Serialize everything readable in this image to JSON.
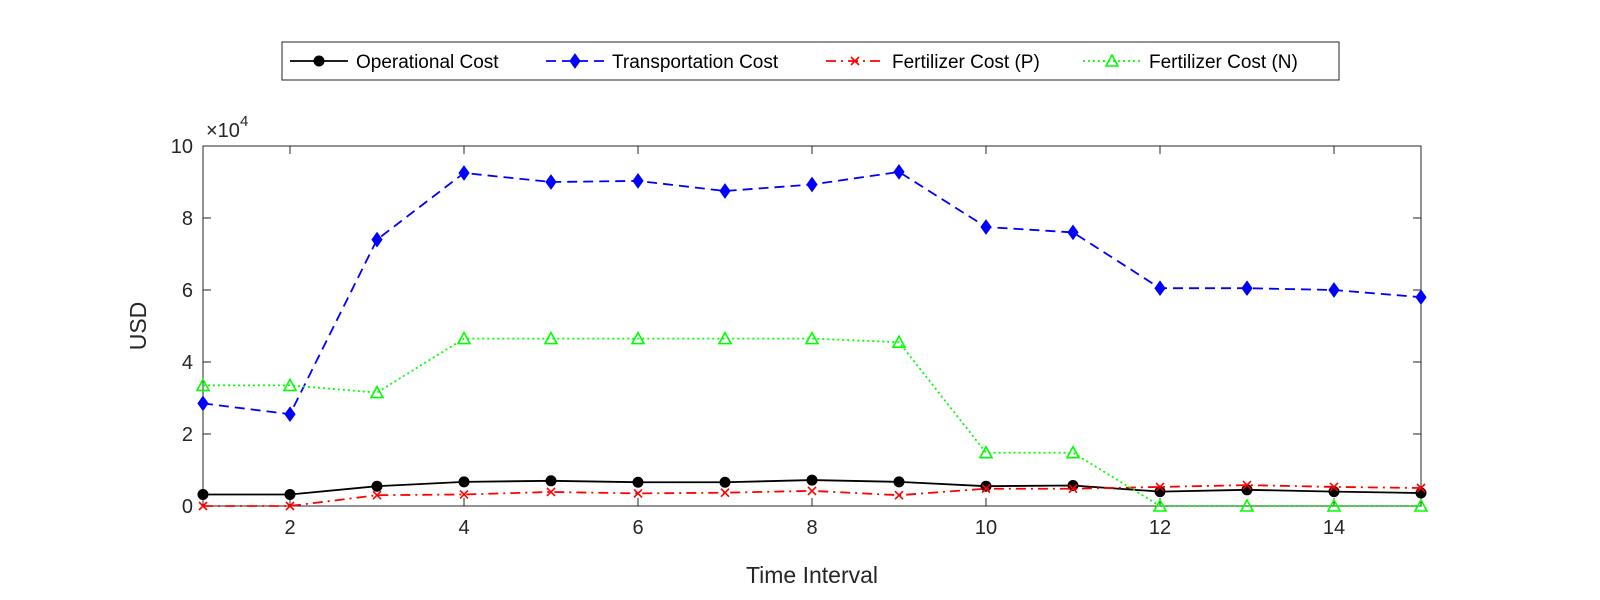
{
  "chart_data": {
    "type": "line",
    "title": "",
    "xlabel": "Time Interval",
    "ylabel": "USD",
    "xlim": [
      1,
      15
    ],
    "ylim": [
      0,
      100000
    ],
    "x_ticks": [
      2,
      4,
      6,
      8,
      10,
      12,
      14
    ],
    "y_ticks": [
      0,
      20000,
      40000,
      60000,
      80000,
      100000
    ],
    "y_tick_labels": [
      "0",
      "2",
      "4",
      "6",
      "8",
      "10"
    ],
    "y_exponent_label": "×10",
    "y_exponent_power": "4",
    "grid": false,
    "legend_position": "top-center",
    "x": [
      1,
      2,
      3,
      4,
      5,
      6,
      7,
      8,
      9,
      10,
      11,
      12,
      13,
      14,
      15
    ],
    "series": [
      {
        "name": "Operational Cost",
        "color": "#000000",
        "line_style": "solid",
        "marker": "circle",
        "values": [
          3200,
          3200,
          5500,
          6700,
          7000,
          6600,
          6600,
          7200,
          6700,
          5500,
          5700,
          4000,
          4500,
          4000,
          3600
        ]
      },
      {
        "name": "Transportation Cost",
        "color": "#0000ff",
        "line_style": "dashed",
        "marker": "diamond",
        "values": [
          28500,
          25500,
          74000,
          92500,
          90000,
          90300,
          87500,
          89300,
          92800,
          77500,
          76000,
          60500,
          60500,
          60000,
          58000
        ]
      },
      {
        "name": "Fertilizer Cost (P)",
        "color": "#ff0000",
        "line_style": "dashdot",
        "marker": "x",
        "values": [
          0,
          0,
          3000,
          3200,
          3900,
          3500,
          3700,
          4200,
          3000,
          4800,
          4800,
          5300,
          5800,
          5300,
          5000
        ]
      },
      {
        "name": "Fertilizer Cost (N)",
        "color": "#00ff00",
        "line_style": "dotted",
        "marker": "triangle",
        "values": [
          33500,
          33500,
          31500,
          46500,
          46500,
          46500,
          46500,
          46500,
          45500,
          14800,
          14800,
          0,
          0,
          0,
          0
        ]
      }
    ]
  }
}
